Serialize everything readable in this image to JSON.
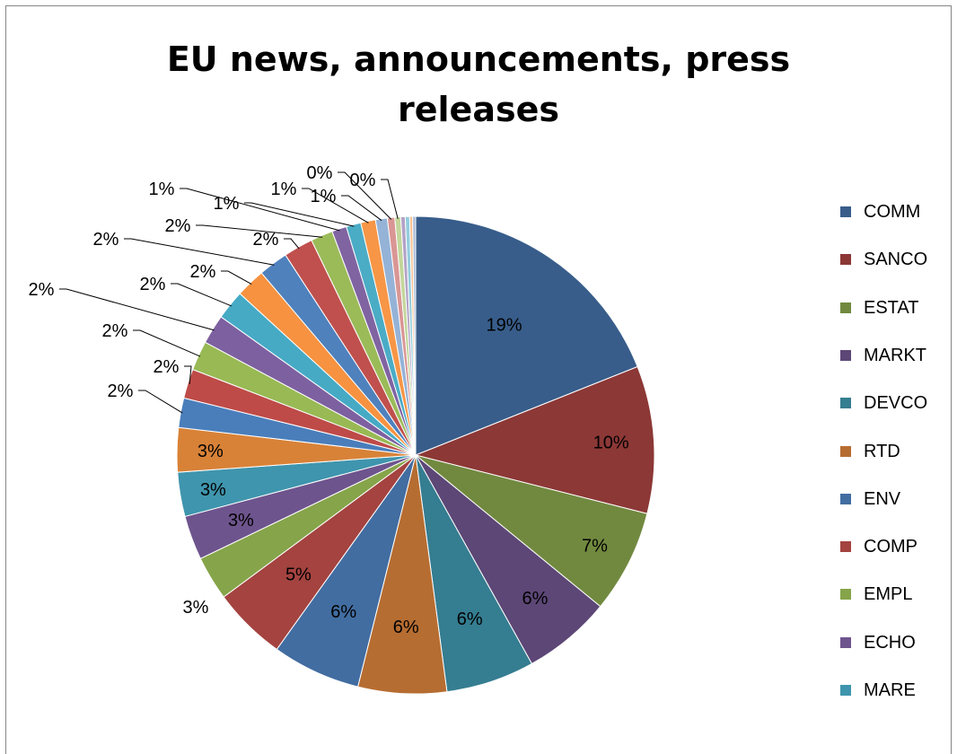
{
  "chart_data": {
    "type": "pie",
    "title": "EU news, announcements, press releases",
    "title_lines": [
      "EU news, announcements, press",
      "releases"
    ],
    "legend_position": "right",
    "categories": [
      "COMM",
      "SANCO",
      "ESTAT",
      "MARKT",
      "DEVCO",
      "RTD",
      "ENV",
      "COMP",
      "EMPL",
      "ECHO",
      "MARE"
    ],
    "slices": [
      {
        "value": 19,
        "label": "19%",
        "color": "#385D8A"
      },
      {
        "value": 10,
        "label": "10%",
        "color": "#8C3836"
      },
      {
        "value": 7,
        "label": "7%",
        "color": "#71893F"
      },
      {
        "value": 6,
        "label": "6%",
        "color": "#5C4776"
      },
      {
        "value": 6,
        "label": "6%",
        "color": "#357D91"
      },
      {
        "value": 6,
        "label": "6%",
        "color": "#B66D31"
      },
      {
        "value": 6,
        "label": "6%",
        "color": "#426DA1"
      },
      {
        "value": 5,
        "label": "5%",
        "color": "#A44340"
      },
      {
        "value": 3,
        "label": "3%",
        "color": "#86A44A"
      },
      {
        "value": 3,
        "label": "3%",
        "color": "#6E548D"
      },
      {
        "value": 3,
        "label": "3%",
        "color": "#3F95AD"
      },
      {
        "value": 3,
        "label": "3%",
        "color": "#D88238"
      },
      {
        "value": 2,
        "label": "2%",
        "color": "#4A7EBB"
      },
      {
        "value": 2,
        "label": "2%",
        "color": "#BE4B48"
      },
      {
        "value": 2,
        "label": "2%",
        "color": "#98B954"
      },
      {
        "value": 2,
        "label": "2%",
        "color": "#7D60A0"
      },
      {
        "value": 2,
        "label": "2%",
        "color": "#46AAC5"
      },
      {
        "value": 2,
        "label": "2%",
        "color": "#F69240"
      },
      {
        "value": 2,
        "label": "2%",
        "color": "#4F81BD"
      },
      {
        "value": 2,
        "label": "2%",
        "color": "#C0504D"
      },
      {
        "value": 1.5,
        "label": "2%",
        "color": "#9BBB59"
      },
      {
        "value": 1,
        "label": "1%",
        "color": "#8064A2"
      },
      {
        "value": 1,
        "label": "1%",
        "color": "#4BACC6"
      },
      {
        "value": 1,
        "label": "1%",
        "color": "#F79646"
      },
      {
        "value": 0.8,
        "label": "1%",
        "color": "#95B3D7"
      },
      {
        "value": 0.5,
        "label": "0%",
        "color": "#D99694"
      },
      {
        "value": 0.4,
        "label": "0%",
        "color": "#C3D69B"
      },
      {
        "value": 0.3,
        "label": "",
        "color": "#B3A2C7"
      },
      {
        "value": 0.3,
        "label": "",
        "color": "#93CDDD"
      },
      {
        "value": 0.2,
        "label": "",
        "color": "#FAC090"
      },
      {
        "value": 0.2,
        "label": "",
        "color": "#A6B9D8"
      }
    ]
  }
}
